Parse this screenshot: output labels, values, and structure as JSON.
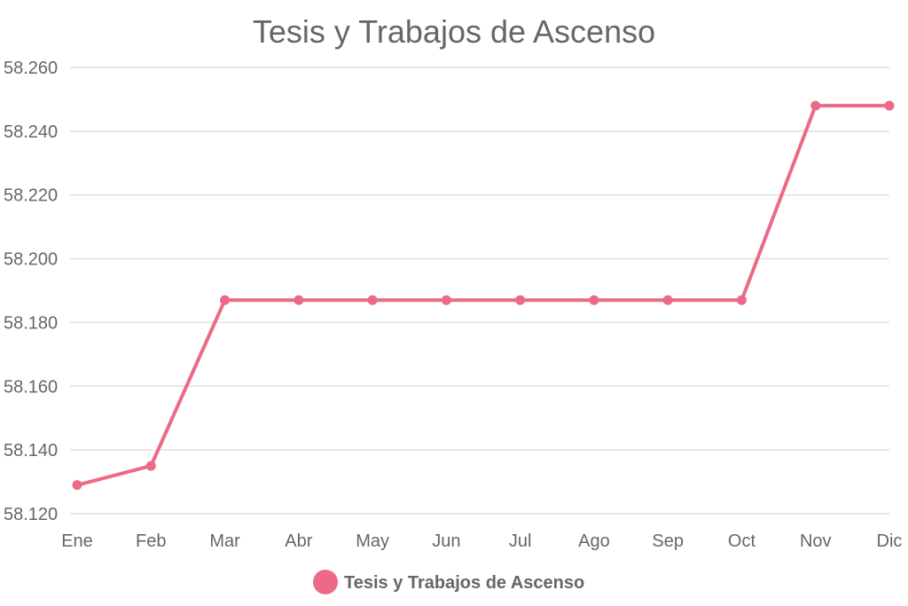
{
  "chart_data": {
    "type": "line",
    "title": "Tesis y Trabajos de Ascenso",
    "xlabel": "",
    "ylabel": "",
    "categories": [
      "Ene",
      "Feb",
      "Mar",
      "Abr",
      "May",
      "Jun",
      "Jul",
      "Ago",
      "Sep",
      "Oct",
      "Nov",
      "Dic"
    ],
    "ylim": [
      58120,
      58260
    ],
    "yticks": [
      58120,
      58140,
      58160,
      58180,
      58200,
      58220,
      58240,
      58260
    ],
    "ytick_labels": [
      "58.120",
      "58.140",
      "58.160",
      "58.180",
      "58.200",
      "58.220",
      "58.240",
      "58.260"
    ],
    "series": [
      {
        "name": "Tesis y Trabajos de Ascenso",
        "color": "#ec6a87",
        "values": [
          58129,
          58135,
          58187,
          58187,
          58187,
          58187,
          58187,
          58187,
          58187,
          58187,
          58248,
          58248
        ]
      }
    ],
    "grid": true,
    "legend_position": "bottom"
  }
}
